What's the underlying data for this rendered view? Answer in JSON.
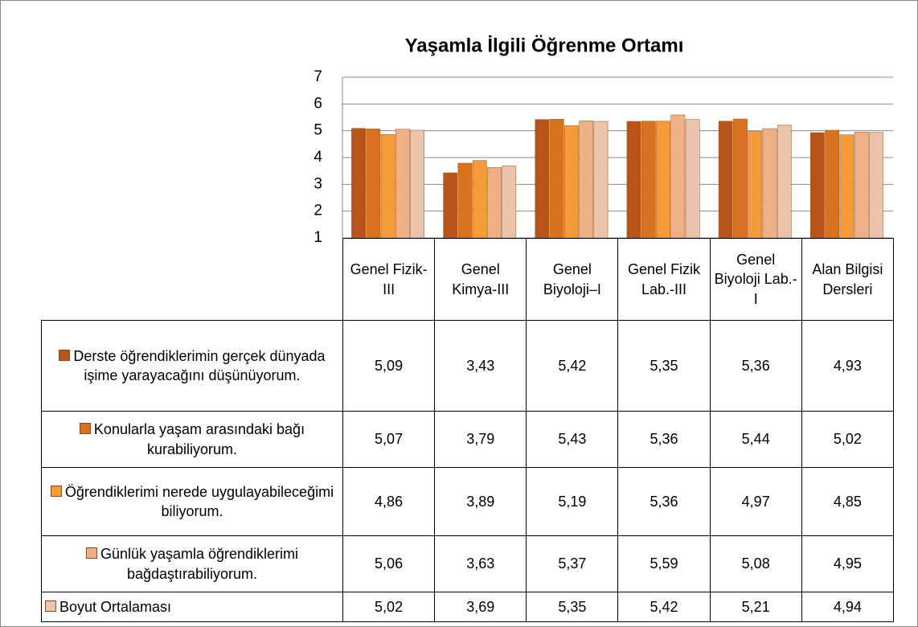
{
  "chart_data": {
    "type": "bar",
    "title": "Yaşamla İlgili Öğrenme Ortamı",
    "categories": [
      "Genel Fizik-III",
      "Genel Kimya-III",
      "Genel Biyoloji–I",
      "Genel Fizik Lab.-III",
      "Genel Biyoloji Lab.-I",
      "Alan Bilgisi Dersleri"
    ],
    "ylim": [
      1,
      7
    ],
    "yticks": [
      1,
      2,
      3,
      4,
      5,
      6,
      7
    ],
    "grid": true,
    "series": [
      {
        "name": "Derste öğrendiklerimin gerçek dünyada işime yarayacağını düşünüyorum.",
        "color": "#b8541a",
        "values": [
          5.09,
          3.43,
          5.42,
          5.35,
          5.36,
          4.93
        ],
        "value_labels": [
          "5,09",
          "3,43",
          "5,42",
          "5,35",
          "5,36",
          "4,93"
        ]
      },
      {
        "name": "Konularla yaşam arasındaki bağı kurabiliyorum.",
        "color": "#d9721f",
        "values": [
          5.07,
          3.79,
          5.43,
          5.36,
          5.44,
          5.02
        ],
        "value_labels": [
          "5,07",
          "3,79",
          "5,43",
          "5,36",
          "5,44",
          "5,02"
        ]
      },
      {
        "name": "Öğrendiklerimi nerede uygulayabileceğimi biliyorum.",
        "color": "#f59a38",
        "values": [
          4.86,
          3.89,
          5.19,
          5.36,
          4.97,
          4.85
        ],
        "value_labels": [
          "4,86",
          "3,89",
          "5,19",
          "5,36",
          "4,97",
          "4,85"
        ]
      },
      {
        "name": "Günlük yaşamla öğrendiklerimi bağdaştırabiliyorum.",
        "color": "#eeb086",
        "values": [
          5.06,
          3.63,
          5.37,
          5.59,
          5.08,
          4.95
        ],
        "value_labels": [
          "5,06",
          "3,63",
          "5,37",
          "5,59",
          "5,08",
          "4,95"
        ]
      },
      {
        "name": "Boyut Ortalaması",
        "color": "#e9c3ac",
        "values": [
          5.02,
          3.69,
          5.35,
          5.42,
          5.21,
          4.94
        ],
        "value_labels": [
          "5,02",
          "3,69",
          "5,35",
          "5,42",
          "5,21",
          "4,94"
        ]
      }
    ]
  }
}
